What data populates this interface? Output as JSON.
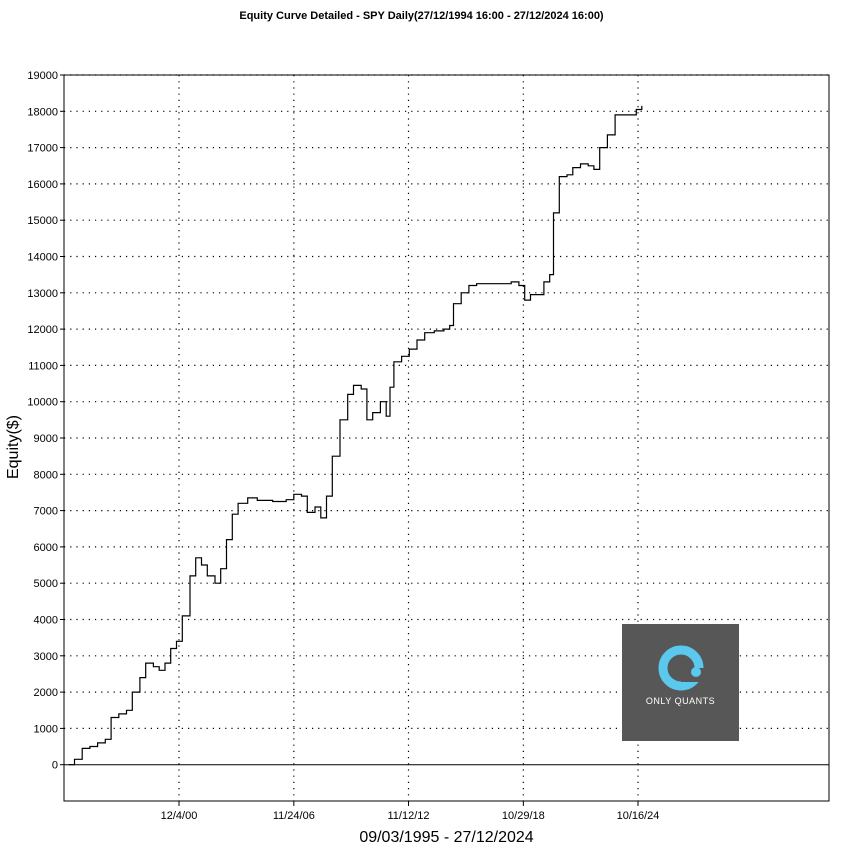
{
  "chart_data": {
    "type": "line",
    "title": "Equity Curve Detailed - SPY Daily(27/12/1994 16:00 - 27/12/2024 16:00)",
    "xlabel": "09/03/1995 - 27/12/2024",
    "ylabel": "Equity($)",
    "ylim": [
      -1000,
      19000
    ],
    "y_ticks": [
      0,
      1000,
      2000,
      3000,
      4000,
      5000,
      6000,
      7000,
      8000,
      9000,
      10000,
      11000,
      12000,
      13000,
      14000,
      15000,
      16000,
      17000,
      18000,
      19000
    ],
    "x_ticks": [
      "12/4/00",
      "11/24/06",
      "11/12/12",
      "10/29/18",
      "10/16/24"
    ],
    "grid": true,
    "series": [
      {
        "values": [
          [
            1995.2,
            0
          ],
          [
            1995.5,
            150
          ],
          [
            1995.9,
            450
          ],
          [
            1996.3,
            500
          ],
          [
            1996.7,
            600
          ],
          [
            1997.1,
            700
          ],
          [
            1997.4,
            1300
          ],
          [
            1997.8,
            1400
          ],
          [
            1998.2,
            1500
          ],
          [
            1998.5,
            2000
          ],
          [
            1998.9,
            2400
          ],
          [
            1999.2,
            2800
          ],
          [
            1999.6,
            2700
          ],
          [
            1999.9,
            2600
          ],
          [
            2000.2,
            2800
          ],
          [
            2000.5,
            3200
          ],
          [
            2000.8,
            3400
          ],
          [
            2001.1,
            4100
          ],
          [
            2001.5,
            5200
          ],
          [
            2001.8,
            5700
          ],
          [
            2002.1,
            5500
          ],
          [
            2002.4,
            5200
          ],
          [
            2002.8,
            5000
          ],
          [
            2003.1,
            5400
          ],
          [
            2003.4,
            6200
          ],
          [
            2003.7,
            6900
          ],
          [
            2004.0,
            7200
          ],
          [
            2004.5,
            7350
          ],
          [
            2005.0,
            7280
          ],
          [
            2005.8,
            7250
          ],
          [
            2006.5,
            7300
          ],
          [
            2006.9,
            7450
          ],
          [
            2007.3,
            7400
          ],
          [
            2007.6,
            6950
          ],
          [
            2008.0,
            7100
          ],
          [
            2008.3,
            6800
          ],
          [
            2008.6,
            7400
          ],
          [
            2008.9,
            8500
          ],
          [
            2009.3,
            9500
          ],
          [
            2009.7,
            10200
          ],
          [
            2010.0,
            10450
          ],
          [
            2010.4,
            10350
          ],
          [
            2010.7,
            9500
          ],
          [
            2011.0,
            9700
          ],
          [
            2011.4,
            10000
          ],
          [
            2011.7,
            9600
          ],
          [
            2011.9,
            10400
          ],
          [
            2012.1,
            11100
          ],
          [
            2012.5,
            11250
          ],
          [
            2012.9,
            11450
          ],
          [
            2013.3,
            11700
          ],
          [
            2013.7,
            11900
          ],
          [
            2014.2,
            11950
          ],
          [
            2014.7,
            12000
          ],
          [
            2015.0,
            12100
          ],
          [
            2015.2,
            12700
          ],
          [
            2015.6,
            13000
          ],
          [
            2016.0,
            13200
          ],
          [
            2016.4,
            13250
          ],
          [
            2017.2,
            13250
          ],
          [
            2017.9,
            13250
          ],
          [
            2018.2,
            13300
          ],
          [
            2018.6,
            13200
          ],
          [
            2018.9,
            12800
          ],
          [
            2019.2,
            12950
          ],
          [
            2019.6,
            12950
          ],
          [
            2019.9,
            13300
          ],
          [
            2020.2,
            13500
          ],
          [
            2020.4,
            15200
          ],
          [
            2020.7,
            16200
          ],
          [
            2021.1,
            16250
          ],
          [
            2021.4,
            16450
          ],
          [
            2021.8,
            16550
          ],
          [
            2022.2,
            16500
          ],
          [
            2022.5,
            16400
          ],
          [
            2022.8,
            17000
          ],
          [
            2023.2,
            17350
          ],
          [
            2023.6,
            17900
          ],
          [
            2024.0,
            17900
          ],
          [
            2024.4,
            17900
          ],
          [
            2024.7,
            18050
          ],
          [
            2024.99,
            18150
          ]
        ]
      }
    ]
  },
  "logo": {
    "text": "ONLY QUANTS",
    "ring_color": "#5bc8ee"
  }
}
